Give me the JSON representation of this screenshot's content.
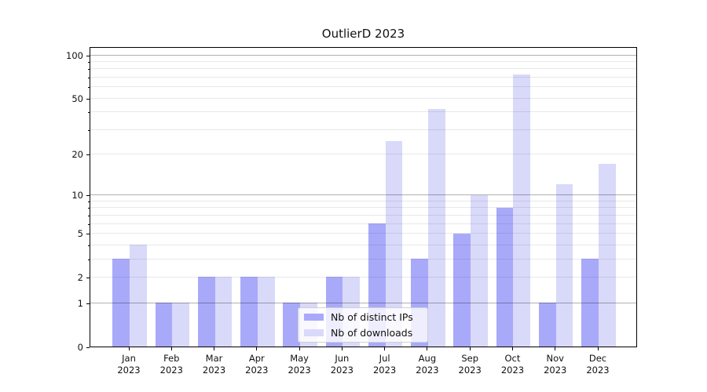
{
  "chart_data": {
    "type": "bar",
    "title": "OutlierD 2023",
    "categories": [
      "Jan 2023",
      "Feb 2023",
      "Mar 2023",
      "Apr 2023",
      "May 2023",
      "Jun 2023",
      "Jul 2023",
      "Aug 2023",
      "Sep 2023",
      "Oct 2023",
      "Nov 2023",
      "Dec 2023"
    ],
    "series": [
      {
        "name": "Nb of distinct IPs",
        "color": "#a9a9fa",
        "values": [
          3,
          1,
          2,
          2,
          1,
          2,
          6,
          3,
          5,
          8,
          1,
          3
        ]
      },
      {
        "name": "Nb of downloads",
        "color": "#d9d9fa",
        "values": [
          4,
          1,
          2,
          2,
          1,
          2,
          25,
          42,
          10,
          73,
          12,
          17
        ]
      }
    ],
    "yscale": "log1p",
    "ylim": [
      0,
      115
    ],
    "yticks_labeled": [
      0,
      1,
      2,
      5,
      10,
      20,
      50,
      100
    ],
    "gridlines": {
      "major": [
        1,
        10,
        100
      ],
      "minor": [
        2,
        3,
        4,
        5,
        6,
        7,
        8,
        9,
        20,
        30,
        40,
        50,
        60,
        70,
        80,
        90
      ]
    },
    "grid": "both",
    "legend_position": "lower center inside",
    "colors": {
      "grid_major": "#b0b0b0",
      "grid_minor": "#e8e8e8",
      "spine": "#000000",
      "background": "#ffffff"
    }
  }
}
